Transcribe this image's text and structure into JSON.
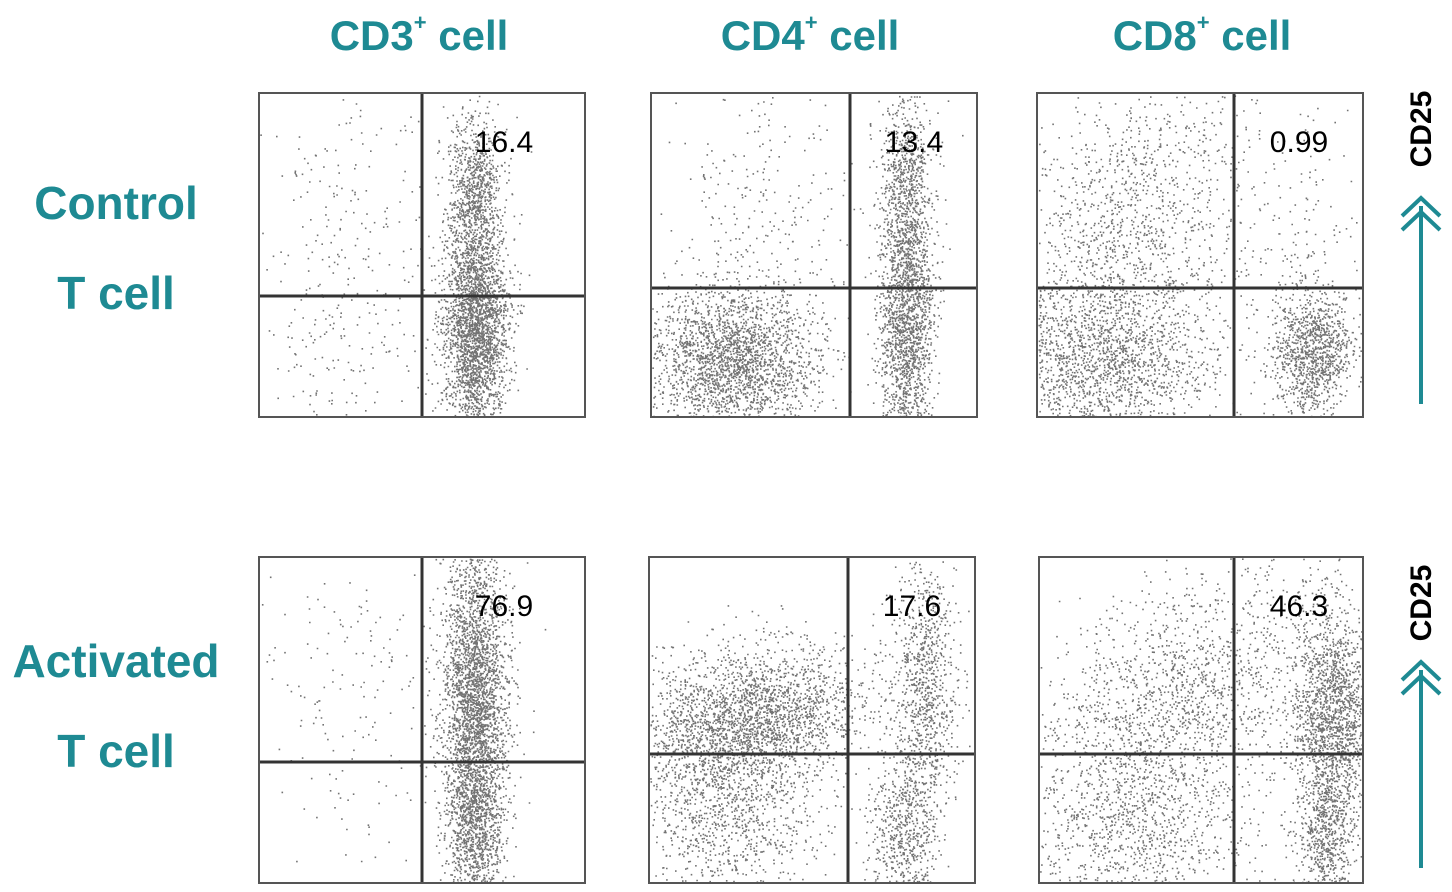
{
  "columns": [
    {
      "name": "CD3",
      "sup": "+",
      "suffix": " cell"
    },
    {
      "name": "CD4",
      "sup": "+",
      "suffix": " cell"
    },
    {
      "name": "CD8",
      "sup": "+",
      "suffix": " cell"
    }
  ],
  "rows": [
    {
      "line1": "Control",
      "line2": "T cell",
      "y_axis_label": "CD25"
    },
    {
      "line1": "Activated",
      "line2": "T cell",
      "y_axis_label": "CD25"
    }
  ],
  "colors": {
    "accent": "#1e8a93",
    "dots": "#000000",
    "gate_lines": "#333333"
  },
  "chart_data": [
    {
      "type": "scatter",
      "row": "Control T cell",
      "column": "CD3+ cell",
      "ylabel": "CD25",
      "upper_right_percent": "16.4"
    },
    {
      "type": "scatter",
      "row": "Control T cell",
      "column": "CD4+ cell",
      "ylabel": "CD25",
      "upper_right_percent": "13.4"
    },
    {
      "type": "scatter",
      "row": "Control T cell",
      "column": "CD8+ cell",
      "ylabel": "CD25",
      "upper_right_percent": "0.99"
    },
    {
      "type": "scatter",
      "row": "Activated T cell",
      "column": "CD3+ cell",
      "ylabel": "CD25",
      "upper_right_percent": "76.9"
    },
    {
      "type": "scatter",
      "row": "Activated T cell",
      "column": "CD4+ cell",
      "ylabel": "CD25",
      "upper_right_percent": "17.6"
    },
    {
      "type": "scatter",
      "row": "Activated T cell",
      "column": "CD8+ cell",
      "ylabel": "CD25",
      "upper_right_percent": "46.3"
    }
  ]
}
